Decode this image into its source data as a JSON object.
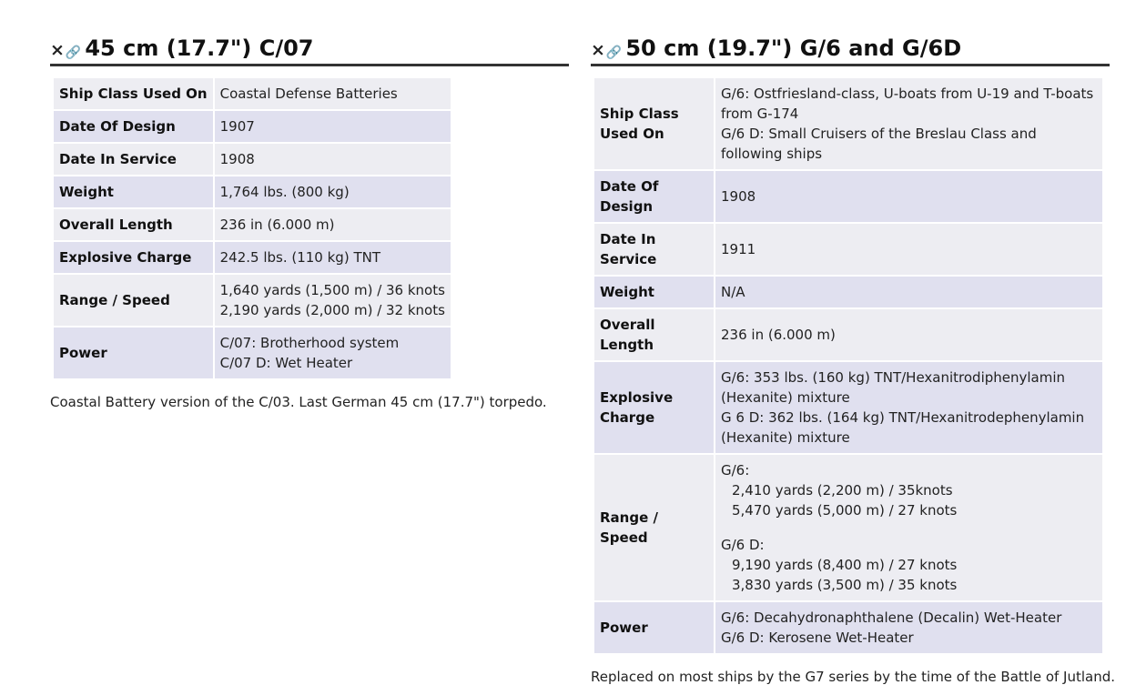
{
  "left": {
    "title": "45 cm (17.7\") C/07",
    "rows": [
      {
        "label": "Ship Class Used On",
        "lines": [
          "Coastal Defense Batteries"
        ]
      },
      {
        "label": "Date Of Design",
        "lines": [
          "1907"
        ]
      },
      {
        "label": "Date In Service",
        "lines": [
          "1908"
        ]
      },
      {
        "label": "Weight",
        "lines": [
          "1,764 lbs. (800 kg)"
        ]
      },
      {
        "label": "Overall Length",
        "lines": [
          "236 in (6.000 m)"
        ]
      },
      {
        "label": "Explosive Charge",
        "lines": [
          "242.5 lbs. (110 kg) TNT"
        ]
      },
      {
        "label": "Range / Speed",
        "lines": [
          "1,640 yards (1,500 m) / 36 knots",
          "2,190 yards (2,000 m) / 32 knots"
        ]
      },
      {
        "label": "Power",
        "lines": [
          "C/07: Brotherhood system",
          "C/07 D: Wet Heater"
        ]
      }
    ],
    "note": "Coastal Battery version of the C/03. Last German 45 cm (17.7\") torpedo."
  },
  "right": {
    "title": "50 cm (19.7\") G/6 and G/6D",
    "rows": {
      "ship_class": {
        "label": "Ship Class Used On",
        "line1": "G/6: Ostfriesland-class, U-boats from U-19 and T-boats from G-174",
        "line2": "G/6 D: Small Cruisers of the Breslau Class and following ships"
      },
      "date_design": {
        "label": "Date Of Design",
        "value": "1908"
      },
      "date_service": {
        "label": "Date In Service",
        "value": "1911"
      },
      "weight": {
        "label": "Weight",
        "value": "N/A"
      },
      "length": {
        "label": "Overall Length",
        "value": "236 in (6.000 m)"
      },
      "charge": {
        "label": "Explosive Charge",
        "line1": "G/6: 353 lbs. (160 kg) TNT/Hexanitrodiphenylamin (Hexanite) mixture",
        "line2": "G 6 D: 362 lbs. (164 kg) TNT/Hexanitrodephenylamin (Hexanite) mixture"
      },
      "range": {
        "label": "Range / Speed",
        "g6_head": "G/6:",
        "g6_1": "2,410 yards (2,200 m) / 35knots",
        "g6_2": "5,470 yards (5,000 m) / 27 knots",
        "g6d_head": "G/6 D:",
        "g6d_1": "9,190 yards (8,400 m) / 27 knots",
        "g6d_2": "3,830 yards (3,500 m) / 35 knots"
      },
      "power": {
        "label": "Power",
        "line1": "G/6: Decahydronaphthalene (Decalin) Wet-Heater",
        "line2": "G/6 D: Kerosene Wet-Heater"
      }
    },
    "note": "Replaced on most ships by the G7 series by the time of the Battle of Jutland."
  },
  "icons": {
    "remove": "close-icon",
    "link": "link-icon"
  }
}
